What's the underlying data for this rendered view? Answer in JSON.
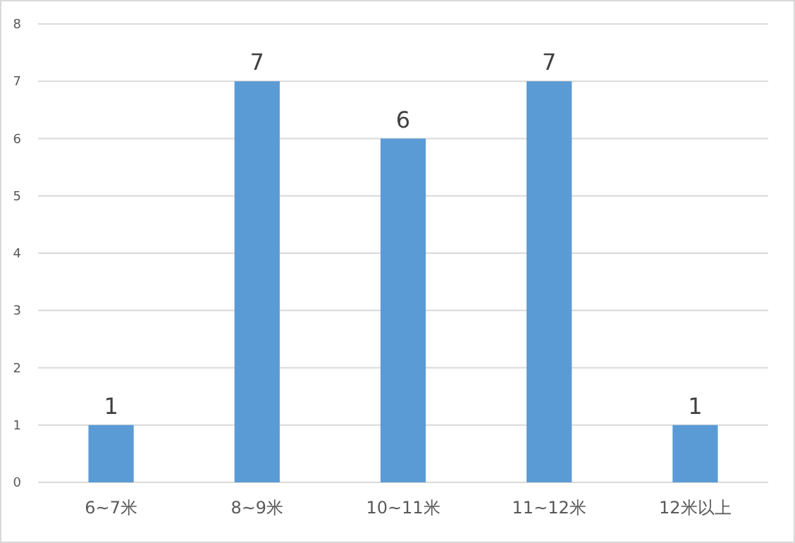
{
  "chart_data": {
    "type": "bar",
    "categories": [
      "6~7米",
      "8~9米",
      "10~11米",
      "11~12米",
      "12米以上"
    ],
    "values": [
      1,
      7,
      6,
      7,
      1
    ],
    "color": "#5b9bd5",
    "ylim": [
      0,
      8
    ],
    "yticks": [
      0,
      1,
      2,
      3,
      4,
      5,
      6,
      7,
      8
    ],
    "grid": "y",
    "data_labels": true
  }
}
